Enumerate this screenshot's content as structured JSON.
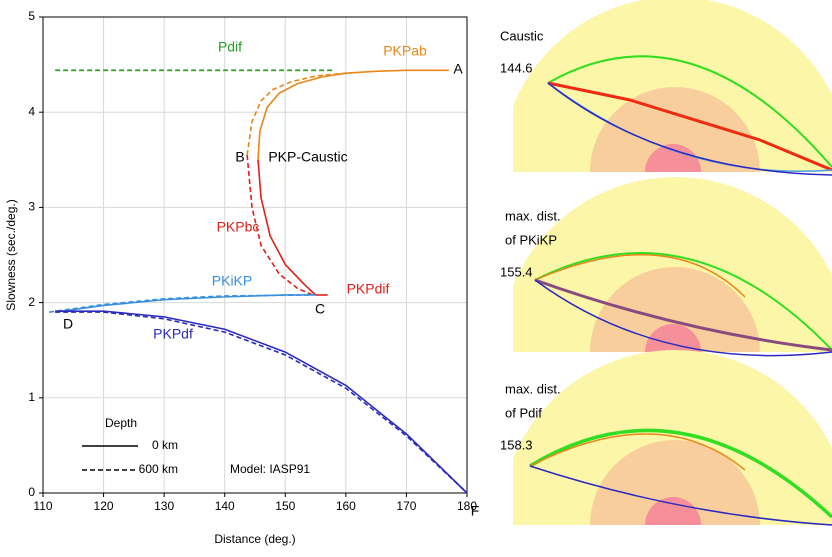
{
  "chart_data": {
    "type": "line",
    "x_label": "Distance (deg.)",
    "y_label": "Slowness (sec./deg.)",
    "xlim": [
      110,
      180
    ],
    "xticks": [
      110,
      120,
      130,
      140,
      150,
      160,
      170,
      180
    ],
    "ylim": [
      0,
      5
    ],
    "yticks": [
      0,
      1,
      2,
      3,
      4,
      5
    ],
    "grid": true,
    "series": [
      {
        "name": "Pdif",
        "color": "#1f9e1f",
        "curves": [
          {
            "dashed": true,
            "x": [
              112,
              158
            ],
            "values": [
              4.44,
              4.44
            ]
          }
        ]
      },
      {
        "name": "PKPab",
        "color": "#e8861a",
        "curves": [
          {
            "dashed": false,
            "x": [
              145.5,
              145.8,
              147,
              149,
              152,
              156,
              160,
              165,
              170,
              177
            ],
            "values": [
              3.5,
              3.8,
              4.05,
              4.2,
              4.3,
              4.37,
              4.41,
              4.43,
              4.44,
              4.44
            ]
          },
          {
            "dashed": true,
            "x": [
              143.7,
              144.5,
              146,
              148,
              151,
              155,
              160,
              165
            ],
            "values": [
              3.55,
              3.9,
              4.12,
              4.24,
              4.32,
              4.38,
              4.41,
              4.43
            ]
          }
        ]
      },
      {
        "name": "PKPbc",
        "color": "#e0201a",
        "curves": [
          {
            "dashed": false,
            "x": [
              145.5,
              146,
              147.5,
              150,
              153,
              155
            ],
            "values": [
              3.5,
              3.1,
              2.7,
              2.4,
              2.2,
              2.08
            ]
          },
          {
            "dashed": true,
            "x": [
              143.7,
              144.5,
              146,
              149,
              152,
              154.5
            ],
            "values": [
              3.55,
              3.0,
              2.6,
              2.3,
              2.15,
              2.08
            ]
          }
        ]
      },
      {
        "name": "PKPdif",
        "color": "#e0201a",
        "curves": [
          {
            "dashed": false,
            "x": [
              155,
              157
            ],
            "values": [
              2.08,
              2.08
            ]
          }
        ]
      },
      {
        "name": "PKiKP",
        "color": "#3a8fdc",
        "curves": [
          {
            "dashed": false,
            "x": [
              112,
              120,
              130,
              140,
              150,
              155
            ],
            "values": [
              1.9,
              1.97,
              2.03,
              2.06,
              2.08,
              2.08
            ]
          },
          {
            "dashed": true,
            "x": [
              111,
              120,
              130,
              140,
              154
            ],
            "values": [
              1.9,
              1.98,
              2.04,
              2.07,
              2.08
            ]
          }
        ]
      },
      {
        "name": "PKPdf",
        "color": "#2a2ac0",
        "curves": [
          {
            "dashed": false,
            "x": [
              112,
              120,
              130,
              140,
              150,
              160,
              170,
              180
            ],
            "values": [
              1.91,
              1.91,
              1.85,
              1.72,
              1.48,
              1.13,
              0.62,
              0
            ]
          },
          {
            "dashed": true,
            "x": [
              112,
              120,
              130,
              140,
              150,
              160,
              170,
              180
            ],
            "values": [
              1.9,
              1.9,
              1.83,
              1.69,
              1.45,
              1.1,
              0.6,
              0
            ]
          }
        ]
      }
    ],
    "annotations": [
      "A",
      "B",
      "C",
      "D",
      "F",
      "PKP-Caustic"
    ],
    "legend": {
      "title": "Depth",
      "entries": [
        {
          "label": "0 km",
          "dashed": false
        },
        {
          "label": "600 km",
          "dashed": true
        }
      ],
      "note": "Model: IASP91"
    }
  },
  "panels": [
    {
      "label_lines": [
        "Caustic"
      ],
      "distance": 144.6
    },
    {
      "label_lines": [
        "max. dist.",
        "of PKiKP"
      ],
      "distance": 155.4
    },
    {
      "label_lines": [
        "max. dist.",
        "of Pdif"
      ],
      "distance": 158.3
    }
  ]
}
